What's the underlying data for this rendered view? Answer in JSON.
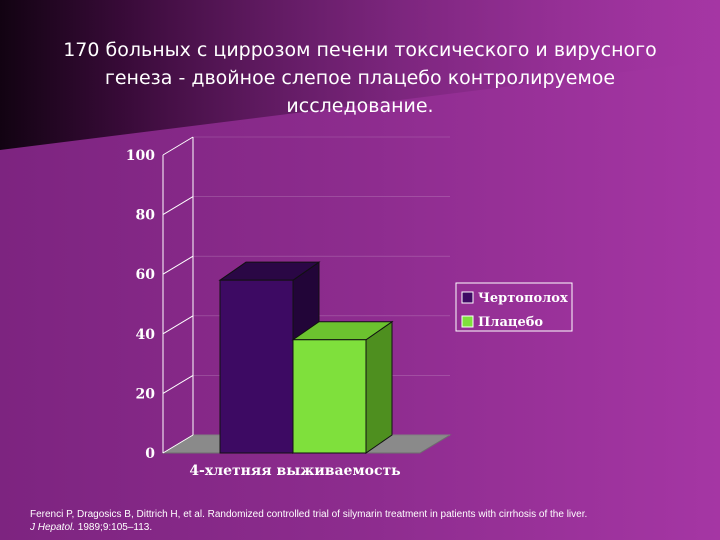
{
  "slide": {
    "title": "170 больных с циррозом печени токсического и вирусного генеза - двойное слепое плацебо контролируемое исследование.",
    "citation_before": "Ferenci P, Dragosics B, Dittrich H, et al. Randomized controlled trial of silymarin treatment in patients with cirrhosis of the liver. ",
    "citation_journal": "J Hepatol.",
    "citation_after": " 1989;9:105–113."
  },
  "colors": {
    "background": "#8c2a8c",
    "background_light": "#a234a2",
    "corner_dark": "#1a0418",
    "axis_text": "#ffffff",
    "floor": "#8a8a8a"
  },
  "chart_data": {
    "type": "bar",
    "three_d": true,
    "categories": [
      "4-хлетняя выживаемость"
    ],
    "xlabel": "4-хлетняя выживаемость",
    "ylabel": "",
    "ylim": [
      0,
      100
    ],
    "yticks": [
      0,
      20,
      40,
      60,
      80,
      100
    ],
    "grid": true,
    "legend_position": "right",
    "series": [
      {
        "name": "Чертополох",
        "values": [
          58
        ],
        "color": "#3d0a63",
        "top_color": "#2a0745",
        "side_color": "#220538"
      },
      {
        "name": "Плацебо",
        "values": [
          38
        ],
        "color": "#7fe03c",
        "top_color": "#6cc22f",
        "side_color": "#4e8f1f"
      }
    ]
  }
}
